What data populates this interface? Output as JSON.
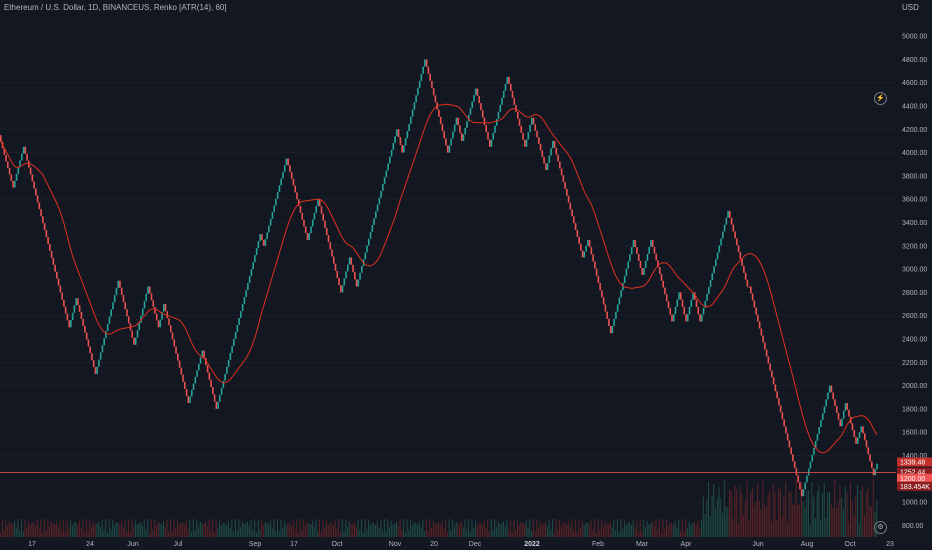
{
  "header": {
    "title": "Ethereum / U.S. Dollar, 1D, BINANCEUS, Renko [ATR(14), 60]",
    "currency": "USD"
  },
  "colors": {
    "background": "#131722",
    "up": "#26a69a",
    "down": "#ef5350",
    "ma_line": "#e0301e",
    "grid": "#1e222d",
    "price_line": "#ef5350"
  },
  "icons": {
    "settings": "⚙",
    "auto_scale": "⚡"
  },
  "price_tags": [
    {
      "text": "1339.48",
      "color": "#c2302b"
    },
    {
      "text": "1252.44",
      "color": "#8b1e1e"
    },
    {
      "text": "1200.00",
      "color": "#ef5350"
    },
    {
      "text": "183.454K",
      "color": "#8b1e1e"
    }
  ],
  "chart_data": {
    "type": "renko",
    "title": "Ethereum / U.S. Dollar, 1D, BINANCEUS, Renko [ATR(14), 60]",
    "y_axis": {
      "label": "USD",
      "ticks": [
        5000,
        4800,
        4600,
        4400,
        4200,
        4000,
        3800,
        3600,
        3400,
        3200,
        3000,
        2800,
        2600,
        2400,
        2200,
        2000,
        1800,
        1600,
        1400,
        1000,
        800
      ],
      "tick_labels": [
        "5000.00",
        "4800.00",
        "4600.00",
        "4400.00",
        "4200.00",
        "4000.00",
        "3800.00",
        "3600.00",
        "3400.00",
        "3200.00",
        "3000.00",
        "2800.00",
        "2600.00",
        "2400.00",
        "2200.00",
        "2000.00",
        "1800.00",
        "1600.00",
        "1400.00",
        "1000.00",
        "800.00"
      ],
      "range": [
        700,
        5190
      ]
    },
    "x_axis": {
      "tick_labels": [
        "17",
        "24",
        "Jun",
        "Jul",
        "Sep",
        "17",
        "Oct",
        "Nov",
        "20",
        "Dec",
        "2022",
        "Feb",
        "Mar",
        "Apr",
        "Jun",
        "Aug",
        "Oct",
        "23"
      ],
      "bold_labels": [
        "2022"
      ]
    },
    "renko_swings": [
      4150,
      3700,
      4050,
      2500,
      2750,
      2100,
      2900,
      2350,
      2850,
      2500,
      2700,
      1850,
      2300,
      1800,
      3300,
      3200,
      3950,
      3250,
      3600,
      2800,
      3100,
      2850,
      4200,
      4000,
      4800,
      4000,
      4300,
      4100,
      4550,
      4050,
      4650,
      4050,
      4300,
      3850,
      4100,
      3100,
      3250,
      2450,
      3250,
      2950,
      3250,
      2550,
      2800,
      2550,
      2800,
      2550,
      3500,
      2850,
      2850,
      1050,
      2000,
      1650,
      1850,
      1500,
      1650,
      1230,
      1330
    ],
    "renko_brick_size": 60,
    "moving_average_label": "MA",
    "last_price": 1252.44
  }
}
